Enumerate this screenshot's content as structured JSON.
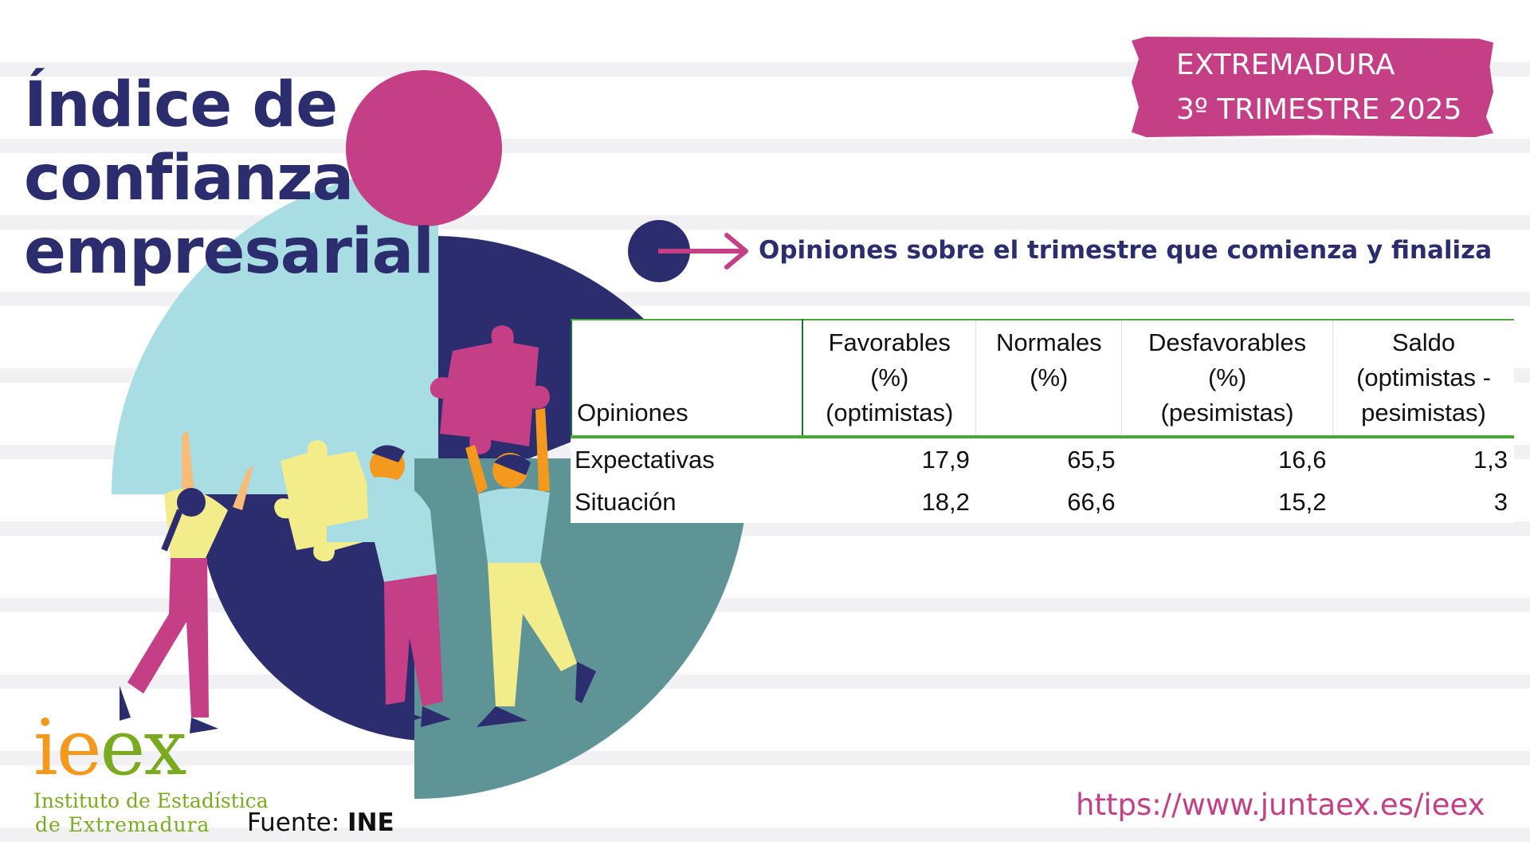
{
  "title": {
    "line1": "Índice de",
    "line2": "confianza",
    "line3": "empresarial"
  },
  "region": {
    "line1": "EXTREMADURA",
    "line2": "3º TRIMESTRE 2025"
  },
  "subtitle": "Opiniones sobre el trimestre que comienza y finaliza",
  "table": {
    "corner_label": "Opiniones",
    "headers": [
      [
        "Favorables",
        "(%)",
        "(optimistas)"
      ],
      [
        "Normales",
        "(%)",
        ""
      ],
      [
        "Desfavorables",
        "(%)",
        "(pesimistas)"
      ],
      [
        "Saldo",
        "(optimistas -",
        "pesimistas)"
      ]
    ],
    "rows": [
      {
        "label": "Expectativas",
        "values": [
          "17,9",
          "65,5",
          "16,6",
          "1,3"
        ]
      },
      {
        "label": "Situación",
        "values": [
          "18,2",
          "66,6",
          "15,2",
          "3"
        ]
      }
    ]
  },
  "logo": {
    "word_a": "i",
    "word_b": "e",
    "word_c": "e",
    "word_d": "x",
    "line1": "Instituto de Estadística",
    "line2": "de Extremadura"
  },
  "source": {
    "label": "Fuente:",
    "value": "INE"
  },
  "url": "https://www.juntaex.es/ieex",
  "colors": {
    "navy": "#2b2d6e",
    "magenta": "#c43f86",
    "light_blue": "#a8dde4",
    "teal": "#5f9497",
    "yellow": "#f3ec8a",
    "orange": "#f39a1e",
    "green": "#7aab1e",
    "table_rule": "#4aa83b"
  }
}
